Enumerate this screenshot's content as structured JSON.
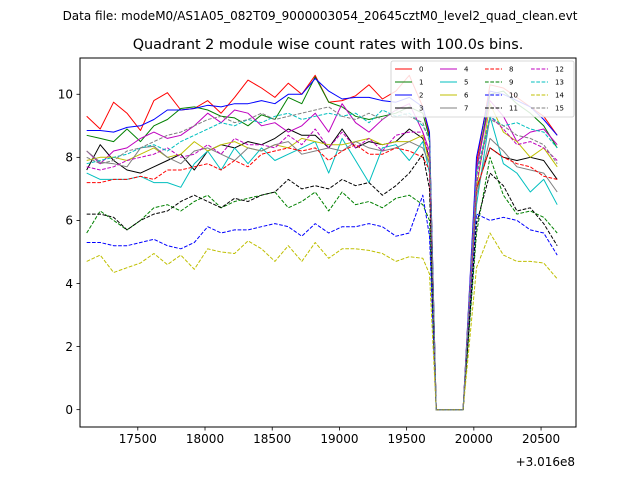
{
  "suptitle": "Data file: modeM0/AS1A05_082T09_9000003054_20645cztM0_level2_quad_clean.evt",
  "chart_data": {
    "type": "line",
    "title": "Quadrant 2 module wise count rates with 100.0s bins.",
    "xlabel": "",
    "ylabel": "",
    "x_offset_label": "+3.016e8",
    "xlim": [
      17070,
      20760
    ],
    "ylim": [
      -0.55,
      11.15
    ],
    "xticks": [
      17000,
      17500,
      18000,
      18500,
      19000,
      19500,
      20000,
      20500
    ],
    "yticks": [
      0,
      2,
      4,
      6,
      8,
      10
    ],
    "legend_position": "top-right",
    "legend_columns": 4,
    "x": [
      17120,
      17220,
      17320,
      17420,
      17520,
      17620,
      17720,
      17820,
      17920,
      18020,
      18120,
      18220,
      18320,
      18420,
      18520,
      18620,
      18720,
      18820,
      18920,
      19020,
      19120,
      19220,
      19320,
      19420,
      19520,
      19620,
      19670,
      19720,
      19820,
      19920,
      20020,
      20120,
      20220,
      20320,
      20420,
      20520,
      20620
    ],
    "series": [
      {
        "name": "0",
        "color": "#ff0000",
        "dash": "solid",
        "values": [
          9.3,
          8.9,
          9.75,
          9.4,
          8.85,
          9.8,
          10.05,
          9.5,
          9.55,
          9.8,
          9.4,
          9.9,
          10.45,
          10.2,
          9.9,
          10.35,
          10.0,
          10.6,
          9.75,
          9.8,
          9.95,
          10.3,
          9.85,
          10.1,
          10.6,
          9.6,
          8.7,
          0.0,
          0.0,
          0.0,
          7.8,
          10.3,
          10.2,
          9.9,
          9.6,
          9.3,
          8.7
        ]
      },
      {
        "name": "1",
        "color": "#008000",
        "dash": "solid",
        "values": [
          8.7,
          8.6,
          8.5,
          8.9,
          8.5,
          9.0,
          9.2,
          9.55,
          9.6,
          9.5,
          9.3,
          9.25,
          9.0,
          9.35,
          9.2,
          9.9,
          9.7,
          10.55,
          9.75,
          9.6,
          9.3,
          9.2,
          9.3,
          9.4,
          9.6,
          9.4,
          8.6,
          0.0,
          0.0,
          0.0,
          7.6,
          10.0,
          10.1,
          9.7,
          9.4,
          9.0,
          8.3
        ]
      },
      {
        "name": "2",
        "color": "#0000ff",
        "dash": "solid",
        "values": [
          8.85,
          8.85,
          8.8,
          8.95,
          9.0,
          9.2,
          9.5,
          9.5,
          9.55,
          9.65,
          9.6,
          9.7,
          9.7,
          9.8,
          9.7,
          10.0,
          10.0,
          10.5,
          10.1,
          9.85,
          9.9,
          9.9,
          9.8,
          9.75,
          9.9,
          9.6,
          8.8,
          0.0,
          0.0,
          0.0,
          8.0,
          10.1,
          10.0,
          9.8,
          9.6,
          9.2,
          8.7
        ]
      },
      {
        "name": "3",
        "color": "#000000",
        "dash": "solid",
        "values": [
          7.6,
          8.4,
          7.9,
          7.6,
          7.5,
          7.7,
          7.9,
          8.1,
          7.6,
          8.2,
          8.4,
          8.3,
          8.5,
          8.4,
          8.6,
          8.9,
          8.7,
          8.7,
          8.3,
          8.9,
          8.3,
          8.5,
          8.4,
          8.5,
          8.9,
          8.6,
          8.0,
          0.0,
          0.0,
          0.0,
          7.0,
          8.3,
          8.0,
          7.9,
          8.0,
          7.9,
          7.3
        ]
      },
      {
        "name": "4",
        "color": "#bf00bf",
        "dash": "solid",
        "values": [
          8.2,
          7.8,
          8.2,
          8.3,
          8.6,
          8.8,
          8.6,
          8.7,
          9.0,
          9.4,
          9.1,
          9.5,
          9.4,
          9.0,
          9.1,
          8.8,
          9.0,
          9.4,
          8.8,
          9.7,
          9.1,
          8.8,
          9.2,
          9.5,
          9.7,
          8.8,
          8.2,
          0.0,
          0.0,
          0.0,
          7.6,
          9.8,
          9.3,
          8.5,
          8.8,
          8.9,
          8.4
        ]
      },
      {
        "name": "5",
        "color": "#00bfbf",
        "dash": "solid",
        "values": [
          7.5,
          7.3,
          7.3,
          7.3,
          7.4,
          7.2,
          7.2,
          7.05,
          7.8,
          8.2,
          7.6,
          8.3,
          7.8,
          8.3,
          7.9,
          8.1,
          8.3,
          8.5,
          7.5,
          8.6,
          7.9,
          7.2,
          8.3,
          8.4,
          7.9,
          8.5,
          7.5,
          0.0,
          0.0,
          0.0,
          6.5,
          9.3,
          7.8,
          7.5,
          6.9,
          7.3,
          6.5
        ]
      },
      {
        "name": "6",
        "color": "#bfbf00",
        "dash": "solid",
        "values": [
          7.9,
          8.0,
          8.0,
          7.9,
          8.1,
          8.3,
          8.0,
          8.1,
          8.5,
          8.2,
          8.4,
          8.5,
          8.3,
          8.2,
          8.4,
          8.3,
          8.6,
          8.5,
          8.4,
          8.4,
          8.5,
          8.6,
          8.4,
          8.5,
          8.5,
          8.7,
          7.8,
          0.0,
          0.0,
          0.0,
          7.0,
          9.7,
          8.8,
          8.5,
          8.0,
          8.3,
          7.7
        ]
      },
      {
        "name": "7",
        "color": "#808080",
        "dash": "solid",
        "values": [
          8.2,
          7.85,
          7.8,
          7.7,
          8.3,
          8.35,
          8.0,
          7.8,
          8.2,
          8.3,
          8.1,
          7.9,
          8.3,
          8.2,
          8.4,
          8.5,
          8.1,
          8.2,
          8.3,
          8.2,
          8.5,
          8.3,
          8.2,
          8.3,
          8.5,
          8.3,
          7.8,
          0.0,
          0.0,
          0.0,
          6.8,
          8.6,
          8.2,
          7.7,
          7.6,
          7.5,
          6.9
        ]
      },
      {
        "name": "8",
        "color": "#ff0000",
        "dash": "dashed",
        "values": [
          7.2,
          7.2,
          7.3,
          7.3,
          7.4,
          7.3,
          7.6,
          7.6,
          7.7,
          7.8,
          7.6,
          7.9,
          7.7,
          8.1,
          8.2,
          8.3,
          8.2,
          8.3,
          7.9,
          8.2,
          8.4,
          8.1,
          8.1,
          8.3,
          8.2,
          8.0,
          7.6,
          0.0,
          0.0,
          0.0,
          7.0,
          8.3,
          8.0,
          7.8,
          7.7,
          7.4,
          7.3
        ]
      },
      {
        "name": "9",
        "color": "#008000",
        "dash": "dashed",
        "values": [
          5.6,
          6.3,
          6.0,
          5.7,
          6.0,
          6.4,
          6.5,
          6.3,
          6.6,
          6.8,
          6.4,
          6.6,
          6.7,
          6.8,
          6.9,
          6.4,
          6.6,
          6.9,
          6.3,
          6.9,
          6.5,
          6.6,
          6.4,
          6.7,
          6.8,
          6.5,
          6.0,
          0.0,
          0.0,
          0.0,
          5.6,
          8.0,
          6.8,
          6.2,
          6.3,
          6.1,
          5.6
        ]
      },
      {
        "name": "10",
        "color": "#0000ff",
        "dash": "dashed",
        "values": [
          5.3,
          5.3,
          5.2,
          5.2,
          5.3,
          5.4,
          5.2,
          5.1,
          5.3,
          5.8,
          5.6,
          5.7,
          5.7,
          5.8,
          5.9,
          5.8,
          5.5,
          5.9,
          5.6,
          5.8,
          5.8,
          5.9,
          5.8,
          5.5,
          5.6,
          6.8,
          5.5,
          0.0,
          0.0,
          0.0,
          6.2,
          6.0,
          6.1,
          6.0,
          5.7,
          5.6,
          4.9
        ]
      },
      {
        "name": "11",
        "color": "#000000",
        "dash": "dashed",
        "values": [
          6.2,
          6.2,
          6.1,
          5.7,
          6.0,
          6.2,
          6.3,
          6.6,
          6.8,
          6.6,
          6.4,
          6.7,
          6.6,
          6.8,
          6.9,
          7.3,
          7.0,
          7.1,
          7.0,
          7.3,
          7.1,
          7.2,
          6.8,
          7.1,
          7.5,
          8.1,
          7.0,
          0.0,
          0.0,
          0.0,
          5.9,
          7.5,
          7.1,
          6.3,
          6.4,
          5.9,
          5.2
        ]
      },
      {
        "name": "12",
        "color": "#bf00bf",
        "dash": "dashed",
        "values": [
          7.7,
          7.6,
          7.7,
          7.9,
          8.0,
          8.1,
          8.3,
          8.0,
          8.1,
          8.4,
          8.1,
          8.6,
          8.4,
          8.4,
          8.3,
          8.7,
          8.4,
          8.9,
          8.3,
          8.8,
          8.3,
          8.6,
          8.2,
          8.7,
          8.8,
          8.8,
          8.0,
          0.0,
          0.0,
          0.0,
          7.2,
          9.3,
          8.9,
          8.4,
          8.5,
          8.3,
          7.9
        ]
      },
      {
        "name": "13",
        "color": "#00bfbf",
        "dash": "dashed",
        "values": [
          7.8,
          7.9,
          8.0,
          8.1,
          8.3,
          8.4,
          8.2,
          8.5,
          8.7,
          8.9,
          9.1,
          9.0,
          9.2,
          9.1,
          9.3,
          9.4,
          9.2,
          9.3,
          9.4,
          9.3,
          9.4,
          9.1,
          9.5,
          9.3,
          9.4,
          9.0,
          8.6,
          0.0,
          0.0,
          0.0,
          7.5,
          9.3,
          9.0,
          9.1,
          8.9,
          8.8,
          8.3
        ]
      },
      {
        "name": "14",
        "color": "#bfbf00",
        "dash": "dashed",
        "values": [
          4.7,
          4.9,
          4.35,
          4.5,
          4.65,
          4.95,
          4.6,
          4.9,
          4.45,
          5.1,
          5.0,
          4.95,
          5.35,
          5.1,
          4.7,
          5.2,
          4.7,
          5.3,
          4.8,
          5.1,
          5.1,
          5.05,
          4.95,
          4.7,
          4.85,
          4.8,
          4.3,
          0.0,
          0.0,
          0.0,
          4.5,
          5.6,
          4.9,
          4.7,
          4.7,
          4.65,
          4.15
        ]
      },
      {
        "name": "15",
        "color": "#808080",
        "dash": "dashed",
        "values": [
          8.0,
          7.8,
          7.9,
          8.2,
          8.3,
          8.5,
          8.7,
          8.8,
          9.0,
          9.2,
          9.3,
          9.1,
          9.2,
          9.4,
          9.2,
          9.3,
          9.4,
          9.5,
          9.6,
          9.3,
          9.2,
          9.4,
          9.2,
          9.5,
          9.3,
          9.1,
          8.5,
          0.0,
          0.0,
          0.0,
          7.4,
          9.2,
          9.0,
          8.7,
          8.6,
          8.4,
          7.8
        ]
      }
    ]
  }
}
